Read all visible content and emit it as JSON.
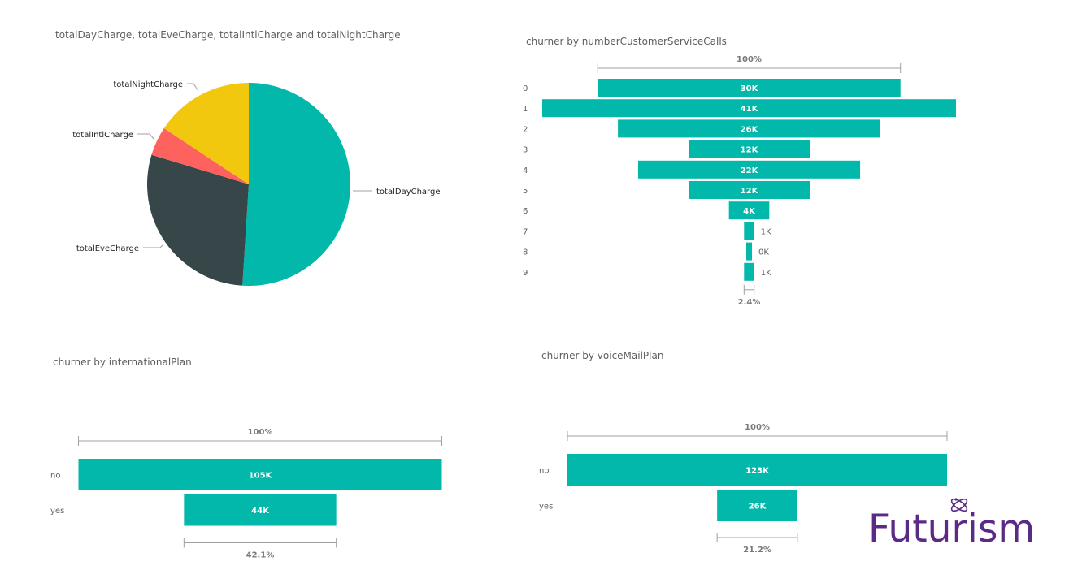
{
  "titles": {
    "pie": "totalDayCharge, totalEveCharge, totalIntlCharge and totalNightCharge",
    "calls": "churner by  numberCustomerServiceCalls",
    "intl": "churner by internationalPlan",
    "vmail": "churner by  voiceMailPlan"
  },
  "logo": {
    "text": "Futurism",
    "color": "#5b2a86",
    "icon": "atom-icon"
  },
  "chart_data": [
    {
      "type": "pie",
      "title": "totalDayCharge, totalEveCharge, totalIntlCharge and totalNightCharge",
      "slices": [
        {
          "name": "totalDayCharge",
          "value": 51.0,
          "color": "#01b8aa"
        },
        {
          "name": "totalEveCharge",
          "value": 28.7,
          "color": "#374649"
        },
        {
          "name": "totalIntlCharge",
          "value": 4.6,
          "color": "#fd625e"
        },
        {
          "name": "totalNightCharge",
          "value": 15.7,
          "color": "#f2c80f"
        }
      ]
    },
    {
      "type": "bar",
      "subtype": "funnel",
      "title": "churner by  numberCustomerServiceCalls",
      "categories": [
        "0",
        "1",
        "2",
        "3",
        "4",
        "5",
        "6",
        "7",
        "8",
        "9"
      ],
      "values": [
        30,
        41,
        26,
        12,
        22,
        12,
        4,
        1,
        0,
        1
      ],
      "labels": [
        "30K",
        "41K",
        "26K",
        "12K",
        "22K",
        "12K",
        "4K",
        "1K",
        "0K",
        "1K"
      ],
      "top_percent": "100%",
      "bottom_percent": "2.4%",
      "color": "#01b8aa"
    },
    {
      "type": "bar",
      "subtype": "funnel",
      "title": "churner by internationalPlan",
      "categories": [
        "no",
        "yes"
      ],
      "values": [
        105,
        44
      ],
      "labels": [
        "105K",
        "44K"
      ],
      "top_percent": "100%",
      "bottom_percent": "42.1%",
      "color": "#01b8aa"
    },
    {
      "type": "bar",
      "subtype": "funnel",
      "title": "churner by  voiceMailPlan",
      "categories": [
        "no",
        "yes"
      ],
      "values": [
        123,
        26
      ],
      "labels": [
        "123K",
        "26K"
      ],
      "top_percent": "100%",
      "bottom_percent": "21.2%",
      "color": "#01b8aa"
    }
  ]
}
